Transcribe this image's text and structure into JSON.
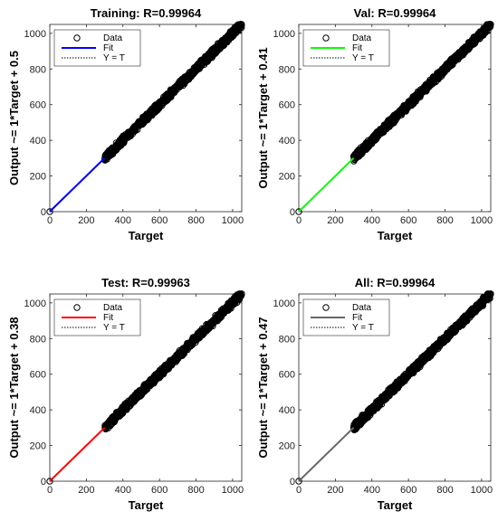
{
  "chart_data": [
    {
      "type": "scatter",
      "title": "Training: R=0.99964",
      "xlabel": "Target",
      "ylabel": "Output ~= 1*Target + 0.5",
      "xlim": [
        0,
        1050
      ],
      "ylim": [
        0,
        1050
      ],
      "xticks": [
        0,
        200,
        400,
        600,
        800,
        1000
      ],
      "yticks": [
        0,
        200,
        400,
        600,
        800,
        1000
      ],
      "fit": {
        "slope": 1,
        "intercept": 0.5,
        "color": "#0000ff"
      },
      "data_points": {
        "x_range": [
          0,
          1050
        ],
        "sparse_gap": [
          0,
          300
        ],
        "slope": 1,
        "intercept": 0.5
      },
      "legend": [
        "Data",
        "Fit",
        "Y = T"
      ],
      "legend_location": "top-left",
      "grid": false
    },
    {
      "type": "scatter",
      "title": "Val: R=0.99964",
      "xlabel": "Target",
      "ylabel": "Output ~= 1*Target + 0.41",
      "xlim": [
        0,
        1050
      ],
      "ylim": [
        0,
        1050
      ],
      "xticks": [
        0,
        200,
        400,
        600,
        800,
        1000
      ],
      "yticks": [
        0,
        200,
        400,
        600,
        800,
        1000
      ],
      "fit": {
        "slope": 1,
        "intercept": 0.41,
        "color": "#00ff00"
      },
      "data_points": {
        "x_range": [
          0,
          1050
        ],
        "sparse_gap": [
          0,
          300
        ],
        "slope": 1,
        "intercept": 0.41
      },
      "legend": [
        "Data",
        "Fit",
        "Y = T"
      ],
      "legend_location": "top-left",
      "grid": false
    },
    {
      "type": "scatter",
      "title": "Test: R=0.99963",
      "xlabel": "Target",
      "ylabel": "Output ~= 1*Target + 0.38",
      "xlim": [
        0,
        1050
      ],
      "ylim": [
        0,
        1050
      ],
      "xticks": [
        0,
        200,
        400,
        600,
        800,
        1000
      ],
      "yticks": [
        0,
        200,
        400,
        600,
        800,
        1000
      ],
      "fit": {
        "slope": 1,
        "intercept": 0.38,
        "color": "#ff0000"
      },
      "data_points": {
        "x_range": [
          0,
          1050
        ],
        "sparse_gap": [
          0,
          300
        ],
        "slope": 1,
        "intercept": 0.38
      },
      "legend": [
        "Data",
        "Fit",
        "Y = T"
      ],
      "legend_location": "top-left",
      "grid": false
    },
    {
      "type": "scatter",
      "title": "All: R=0.99964",
      "xlabel": "Target",
      "ylabel": "Output ~= 1*Target + 0.47",
      "xlim": [
        0,
        1050
      ],
      "ylim": [
        0,
        1050
      ],
      "xticks": [
        0,
        200,
        400,
        600,
        800,
        1000
      ],
      "yticks": [
        0,
        200,
        400,
        600,
        800,
        1000
      ],
      "fit": {
        "slope": 1,
        "intercept": 0.47,
        "color": "#666666"
      },
      "data_points": {
        "x_range": [
          0,
          1050
        ],
        "sparse_gap": [
          0,
          300
        ],
        "slope": 1,
        "intercept": 0.47
      },
      "legend": [
        "Data",
        "Fit",
        "Y = T"
      ],
      "legend_location": "top-left",
      "grid": false
    }
  ]
}
